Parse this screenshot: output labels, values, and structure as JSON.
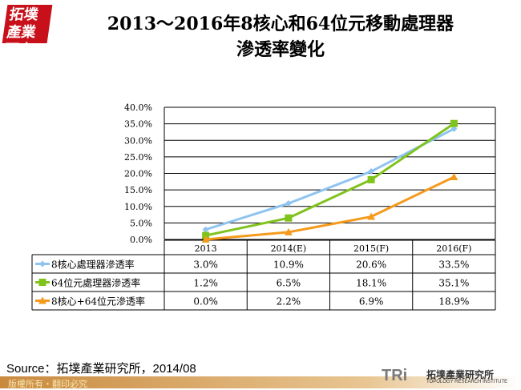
{
  "logo": "拓墣產業研究",
  "title_line1": "2013～2016年8核心和64位元移動處理器",
  "title_line2": "滲透率變化",
  "source": "Source：拓墣產業研究所，2014/08",
  "footer": "版權所有・翻印必究",
  "brand": {
    "mark": "TRi",
    "name_cn": "拓墣產業研究所",
    "name_en": "TOPOLOGY RESEARCH INSTITUTE"
  },
  "chart_data": {
    "type": "line",
    "categories": [
      "2013",
      "2014(E)",
      "2015(F)",
      "2016(F)"
    ],
    "ylim": [
      0,
      40
    ],
    "yticks": [
      "0.0%",
      "5.0%",
      "10.0%",
      "15.0%",
      "20.0%",
      "25.0%",
      "30.0%",
      "35.0%",
      "40.0%"
    ],
    "grid": true,
    "legend": "data-table",
    "series": [
      {
        "name": "8核心處理器滲透率",
        "values": [
          3.0,
          10.9,
          20.6,
          33.5
        ],
        "labels": [
          "3.0%",
          "10.9%",
          "20.6%",
          "33.5%"
        ],
        "color": "#8fc3f0",
        "marker": "diamond"
      },
      {
        "name": "64位元處理器滲透率",
        "values": [
          1.2,
          6.5,
          18.1,
          35.1
        ],
        "labels": [
          "1.2%",
          "6.5%",
          "18.1%",
          "35.1%"
        ],
        "color": "#7fc31c",
        "marker": "square"
      },
      {
        "name": "8核心+64位元滲透率",
        "values": [
          0.0,
          2.2,
          6.9,
          18.9
        ],
        "labels": [
          "0.0%",
          "2.2%",
          "6.9%",
          "18.9%"
        ],
        "color": "#f59a1c",
        "marker": "triangle"
      }
    ]
  }
}
